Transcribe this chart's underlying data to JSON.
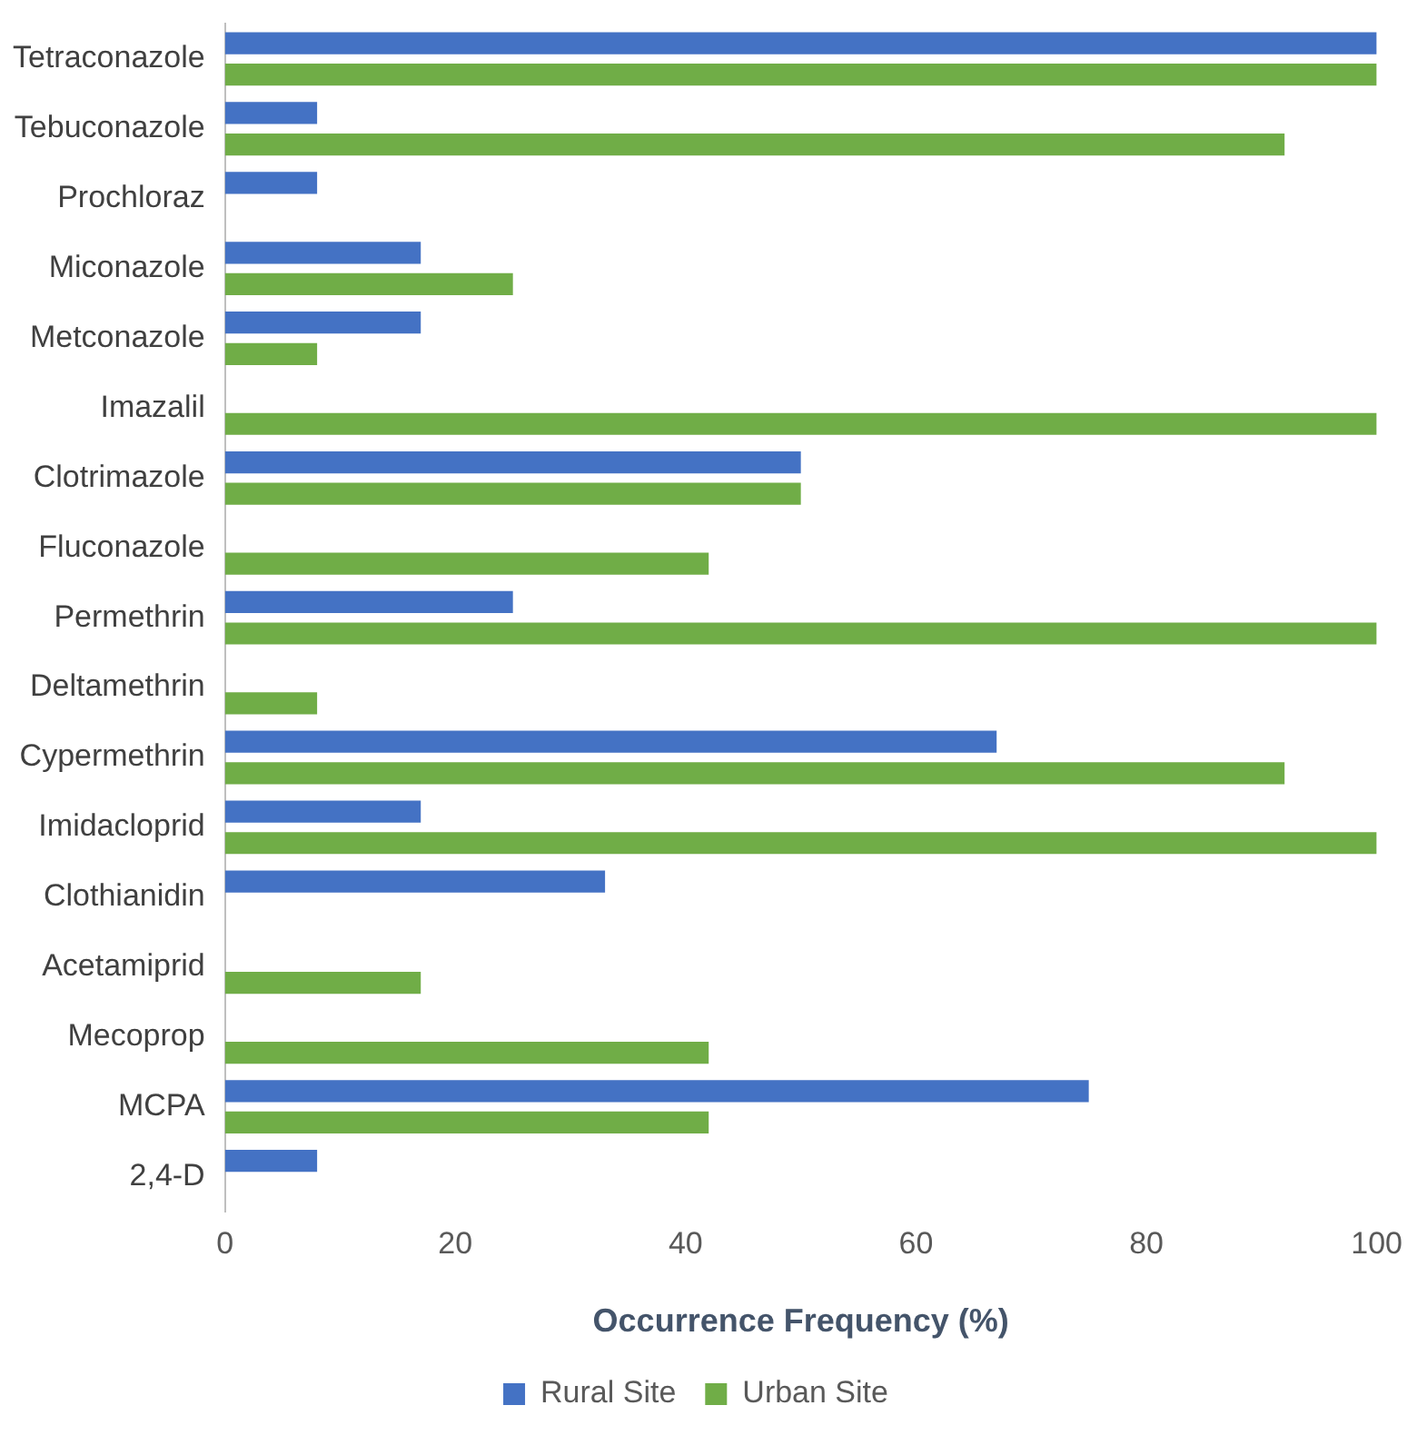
{
  "chart_data": {
    "type": "bar",
    "orientation": "horizontal",
    "xlabel": "Occurrence Frequency (%)",
    "categories": [
      "Tetraconazole",
      "Tebuconazole",
      "Prochloraz",
      "Miconazole",
      "Metconazole",
      "Imazalil",
      "Clotrimazole",
      "Fluconazole",
      "Permethrin",
      "Deltamethrin",
      "Cypermethrin",
      "Imidacloprid",
      "Clothianidin",
      "Acetamiprid",
      "Mecoprop",
      "MCPA",
      "2,4-D"
    ],
    "series": [
      {
        "name": "Rural Site",
        "color": "#4472c4",
        "values": [
          100,
          8,
          8,
          17,
          17,
          0,
          50,
          0,
          25,
          0,
          67,
          17,
          33,
          0,
          0,
          75,
          8
        ]
      },
      {
        "name": "Urban Site",
        "color": "#70ad47",
        "values": [
          100,
          92,
          0,
          25,
          8,
          100,
          50,
          42,
          100,
          8,
          92,
          100,
          0,
          17,
          42,
          42,
          0
        ]
      }
    ],
    "xlim": [
      0,
      100
    ],
    "xticks": [
      0,
      20,
      40,
      60,
      80,
      100
    ],
    "grid": false,
    "legend": "bottom"
  }
}
